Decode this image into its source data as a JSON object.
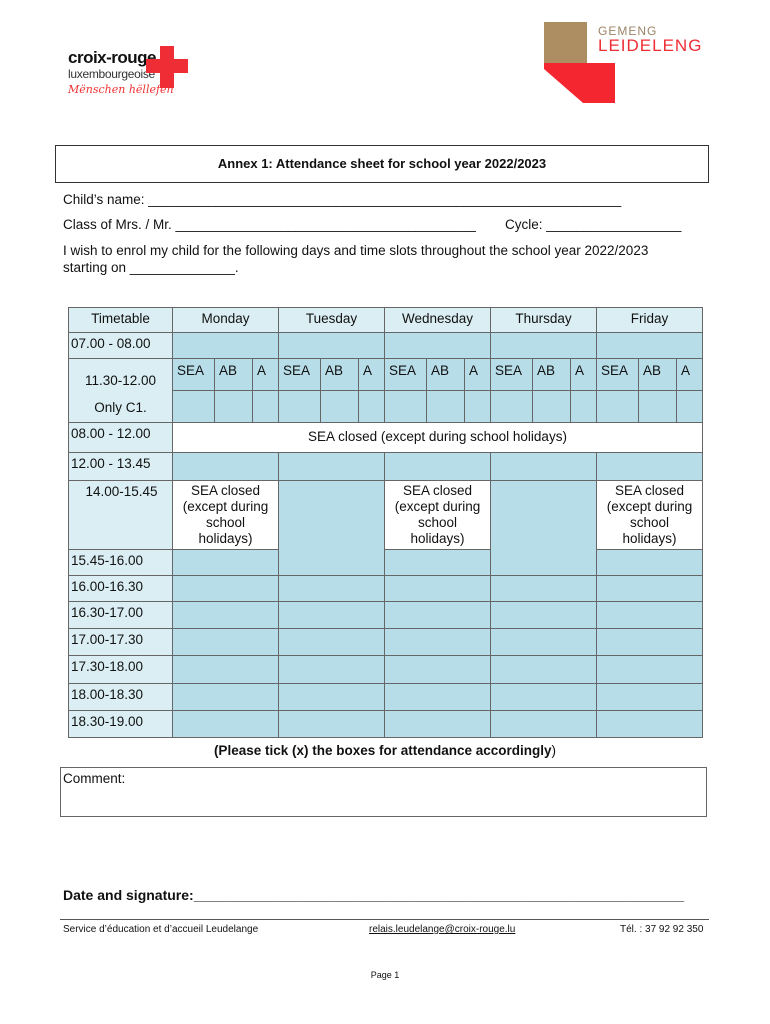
{
  "logos": {
    "croix_rouge": {
      "name": "croix-rouge",
      "sub": "luxembourgeoise",
      "tagline": "Mënschen hëllefen"
    },
    "leudelange": {
      "line1": "GEMENG",
      "line2": "LEIDELENG"
    }
  },
  "title": "Annex 1: Attendance sheet for school year 2022/2023",
  "form": {
    "child_name": "Child’s name: _______________________________________________________________",
    "class": "Class of Mrs. / Mr. ________________________________________",
    "cycle": "Cycle: __________________",
    "enrol_1": "I wish to enrol my child for the following days and time slots throughout the school year 2022/2023",
    "enrol_2": "starting on ______________."
  },
  "table": {
    "header": [
      "Timetable",
      "Monday",
      "Tuesday",
      "Wednesday",
      "Thursday",
      "Friday"
    ],
    "times": [
      "07.00 - 08.00",
      "11.30-12.00",
      "Only C1.",
      "08.00 - 12.00",
      "12.00 - 13.45",
      "14.00-15.45",
      "15.45-16.00",
      "16.00-16.30",
      "16.30-17.00",
      "17.00-17.30",
      "17.30-18.00",
      "18.00-18.30",
      "18.30-19.00"
    ],
    "subcols": [
      "SEA",
      "AB",
      "A"
    ],
    "closed_wide": "SEA closed (except during school holidays)",
    "closed_narrow": [
      "SEA closed",
      "(except during",
      "school",
      "holidays)"
    ]
  },
  "note_bold": "(Please tick (x) the boxes for attendance accordingly",
  "note_end": ")",
  "comment_label": "Comment:",
  "signature": "Date and signature:_______________________________________________________________",
  "footer": {
    "service": "Service d’éducation et d’accueil Leudelange",
    "email": "relais.leudelange@croix-rouge.lu",
    "tel": "Tél. : 37 92 92 350"
  },
  "page": "Page 1",
  "colors": {
    "header_blue": "#daeef3",
    "cell_blue": "#b7dde8",
    "red": "#ee2d35",
    "gold": "#ad8d62"
  }
}
